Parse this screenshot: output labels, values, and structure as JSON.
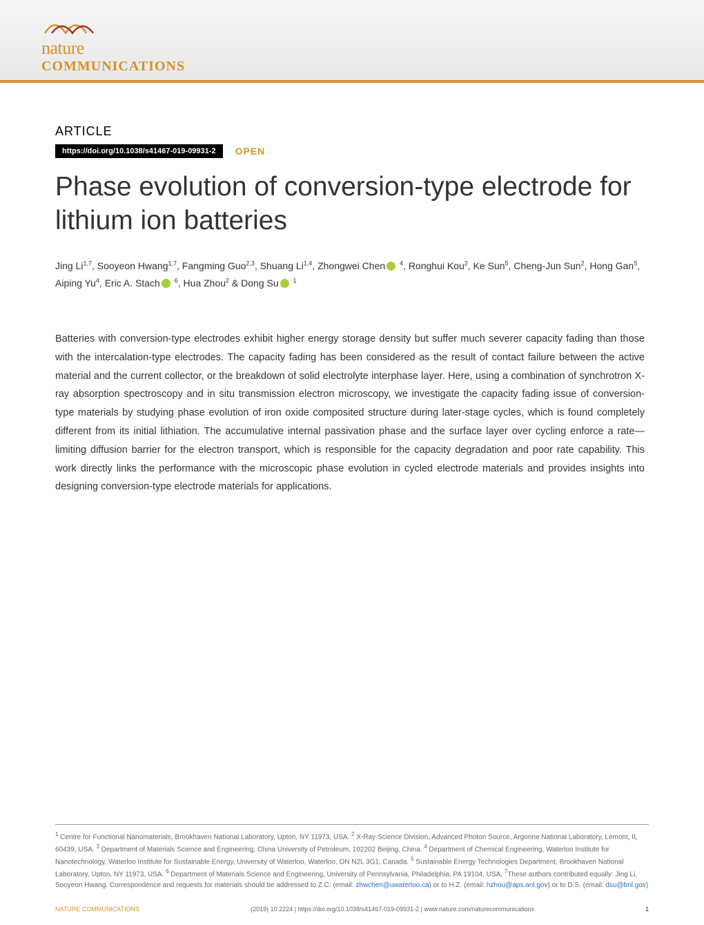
{
  "journal": {
    "logo_nature": "nature",
    "logo_communications": "COMMUNICATIONS",
    "wave_colors": [
      "#d59229",
      "#a0391f"
    ]
  },
  "article": {
    "label": "ARTICLE",
    "doi": "https://doi.org/10.1038/s41467-019-09931-2",
    "open_label": "OPEN",
    "title": "Phase evolution of conversion-type electrode for lithium ion batteries",
    "authors_html": "Jing Li<sup>1,7</sup>, Sooyeon Hwang<sup>1,7</sup>, Fangming Guo<sup>2,3</sup>, Shuang Li<sup>1,4</sup>, Zhongwei Chen<span class='orcid-icon'></span> <sup>4</sup>, Ronghui Kou<sup>2</sup>, Ke Sun<sup>5</sup>, Cheng-Jun Sun<sup>2</sup>, Hong Gan<sup>5</sup>, Aiping Yu<sup>4</sup>, Eric A. Stach<span class='orcid-icon'></span> <sup>6</sup>, Hua Zhou<sup>2</sup> & Dong Su<span class='orcid-icon'></span> <sup>1</sup>",
    "abstract": "Batteries with conversion-type electrodes exhibit higher energy storage density but suffer much severer capacity fading than those with the intercalation-type electrodes. The capacity fading has been considered as the result of contact failure between the active material and the current collector, or the breakdown of solid electrolyte interphase layer. Here, using a combination of synchrotron X-ray absorption spectroscopy and in situ transmission electron microscopy, we investigate the capacity fading issue of conversion-type materials by studying phase evolution of iron oxide composited structure during later-stage cycles, which is found completely different from its initial lithiation. The accumulative internal passivation phase and the surface layer over cycling enforce a rate—limiting diffusion barrier for the electron transport, which is responsible for the capacity degradation and poor rate capability. This work directly links the performance with the microscopic phase evolution in cycled electrode materials and provides insights into designing conversion-type electrode materials for applications."
  },
  "affiliations": {
    "text_html": "<sup>1</sup> Centre for Functional Nanomaterials, Brookhaven National Laboratory, Upton, NY 11973, USA. <sup>2</sup> X-Ray Science Division, Advanced Photon Source, Argonne National Laboratory, Lemont, IL 60439, USA. <sup>3</sup> Department of Materials Science and Engineering, China University of Petroleum, 102202 Beijing, China. <sup>4</sup> Department of Chemical Engineering, Waterloo Institute for Nanotechnology, Waterloo Institute for Sustainable Energy, University of Waterloo, Waterloo, ON N2L 3G1, Canada. <sup>5</sup> Sustainable Energy Technologies Department, Brookhaven National Laboratory, Upton, NY 11973, USA. <sup>6</sup> Department of Materials Science and Engineering, University of Pennsylvania, Philadelphia, PA 19104, USA. <sup>7</sup>These authors contributed equally: Jing Li, Sooyeon Hwang. Correspondence and requests for materials should be addressed to Z.C. (email: <span class='email-link'>zhwchen@uwaterloo.ca</span>) or to H.Z. (email: <span class='email-link'>hzhou@aps.anl.gov</span>) or to D.S. (email: <span class='email-link'>dsu@bnl.gov</span>)"
  },
  "footer": {
    "journal_name": "NATURE COMMUNICATIONS",
    "citation": "(2019) 10:2224 | https://doi.org/10.1038/s41467-019-09931-2 | www.nature.com/naturecommunications",
    "page_number": "1"
  },
  "colors": {
    "brand_orange": "#d59229",
    "link_blue": "#2a6ebb",
    "orcid_green": "#a6ce39",
    "text_primary": "#333333",
    "text_secondary": "#666666",
    "background": "#ffffff"
  }
}
